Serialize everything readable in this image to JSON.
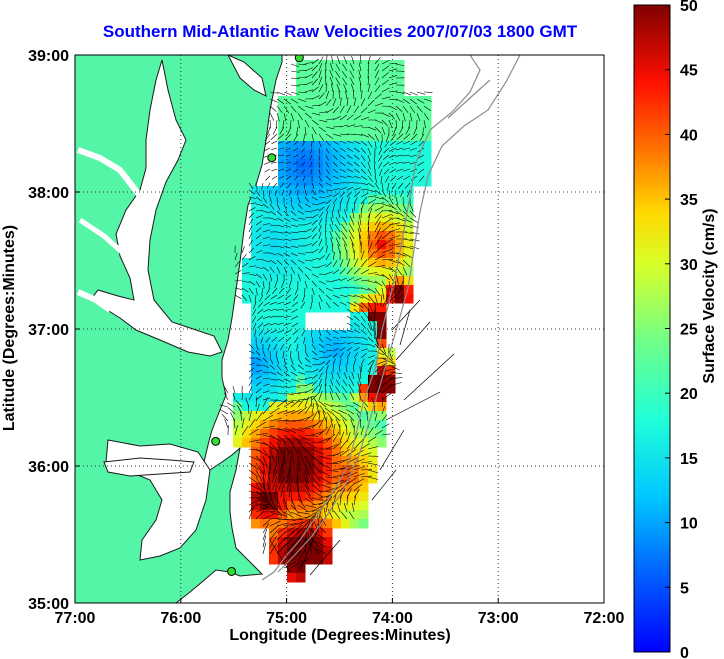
{
  "title": "Southern Mid-Atlantic Raw Velocities 2007/07/03 1800 GMT",
  "map": {
    "x_axis_label": "Longitude (Degrees:Minutes)",
    "y_axis_label": "Latitude (Degrees:Minutes)",
    "x_ticks": [
      "77:00",
      "76:00",
      "75:00",
      "74:00",
      "73:00",
      "72:00"
    ],
    "y_ticks": [
      "39:00",
      "38:00",
      "37:00",
      "36:00",
      "35:00"
    ],
    "lon_range_deg_west": [
      77,
      72
    ],
    "lat_range_deg_north": [
      35,
      39
    ],
    "grid": "dotted",
    "land_color": "#55f5a8",
    "arrow_color": "#000000"
  },
  "colorbar": {
    "label": "Surface Velocity (cm/s)",
    "ticks": [
      "50",
      "45",
      "40",
      "35",
      "30",
      "25",
      "20",
      "15",
      "10",
      "5",
      "0"
    ],
    "range": [
      0,
      50
    ],
    "colormap": "jet"
  },
  "stations": [
    {
      "name": "",
      "lon": -74.88,
      "lat": 38.98
    },
    {
      "name": "",
      "lon": -75.14,
      "lat": 38.25
    },
    {
      "name": "",
      "lon": -75.67,
      "lat": 36.18
    },
    {
      "name": "",
      "lon": -75.52,
      "lat": 35.23
    }
  ]
}
